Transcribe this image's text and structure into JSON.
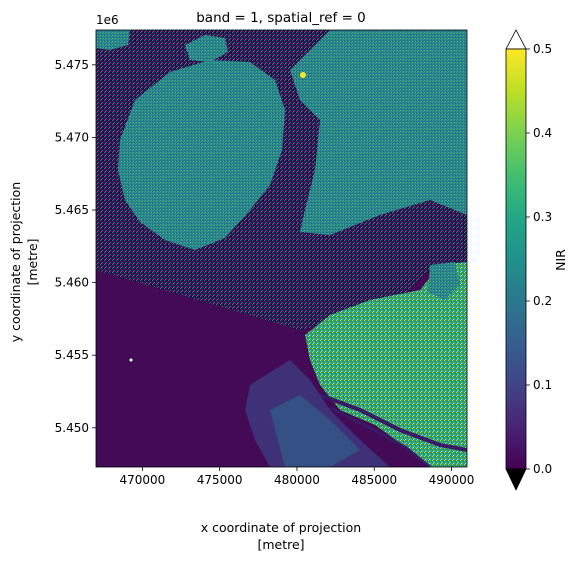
{
  "chart_data": {
    "type": "heatmap",
    "title": "band = 1, spatial_ref = 0",
    "xlabel_line1": "x coordinate of projection",
    "xlabel_line2": "[metre]",
    "ylabel_line1": "y coordinate of projection",
    "ylabel_line2": "[metre]",
    "y_offset_label": "1e6",
    "xlim": [
      467000,
      491000
    ],
    "ylim": [
      5447300,
      5477400
    ],
    "x_ticks": [
      470000,
      475000,
      480000,
      485000,
      490000
    ],
    "x_tick_labels": [
      "470000",
      "475000",
      "480000",
      "485000",
      "490000"
    ],
    "y_ticks": [
      5.45,
      5.455,
      5.46,
      5.465,
      5.47,
      5.475
    ],
    "y_tick_labels": [
      "5.450",
      "5.455",
      "5.460",
      "5.465",
      "5.470",
      "5.475"
    ],
    "colorbar": {
      "label": "NIR",
      "vmin": 0.0,
      "vmax": 0.5,
      "ticks": [
        0.0,
        0.1,
        0.2,
        0.3,
        0.4,
        0.5
      ],
      "tick_labels": [
        "0.0",
        "0.1",
        "0.2",
        "0.3",
        "0.4",
        "0.5"
      ],
      "extend": "both",
      "colormap": "viridis"
    },
    "colors": {
      "viridis_low": "#440154",
      "viridis_mid": "#21918c",
      "viridis_high": "#fde725",
      "extend_over": "#ffffff",
      "extend_under": "#000000"
    }
  }
}
